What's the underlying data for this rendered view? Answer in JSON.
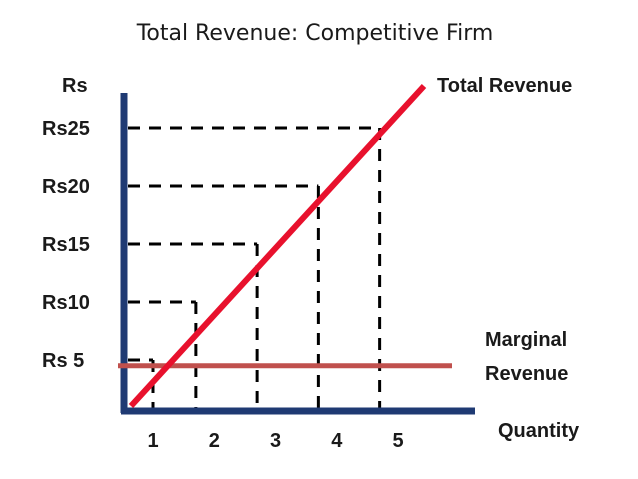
{
  "chart_data": {
    "type": "line",
    "title": "Total Revenue: Competitive Firm",
    "ylabel": "Rs",
    "xlabel": "Quantity",
    "x_ticks": [
      "1",
      "2",
      "3",
      "4",
      "5"
    ],
    "y_ticks": [
      "Rs 5",
      "Rs10",
      "Rs15",
      "Rs20",
      "Rs25"
    ],
    "y_tick_values": [
      5,
      10,
      15,
      20,
      25
    ],
    "xlim": [
      0.2,
      5.8
    ],
    "ylim": [
      0,
      30
    ],
    "series": [
      {
        "name": "Total Revenue",
        "color": "#e8112d",
        "x": [
          0.2,
          5.0
        ],
        "y": [
          0.5,
          25
        ]
      },
      {
        "name": "Marginal Revenue",
        "name_lines": [
          "Marginal",
          "Revenue"
        ],
        "color": "#c0504d",
        "x": [
          0.2,
          5.5
        ],
        "y": [
          4.5,
          4.5
        ]
      }
    ],
    "guide_points": [
      {
        "x": 1,
        "y": 5
      },
      {
        "x": 1.7,
        "y": 10
      },
      {
        "x": 2.7,
        "y": 15
      },
      {
        "x": 3.7,
        "y": 20
      },
      {
        "x": 4.7,
        "y": 25
      }
    ],
    "colors": {
      "axis": "#1f3a73",
      "guides": "#000000"
    },
    "grid": false
  }
}
